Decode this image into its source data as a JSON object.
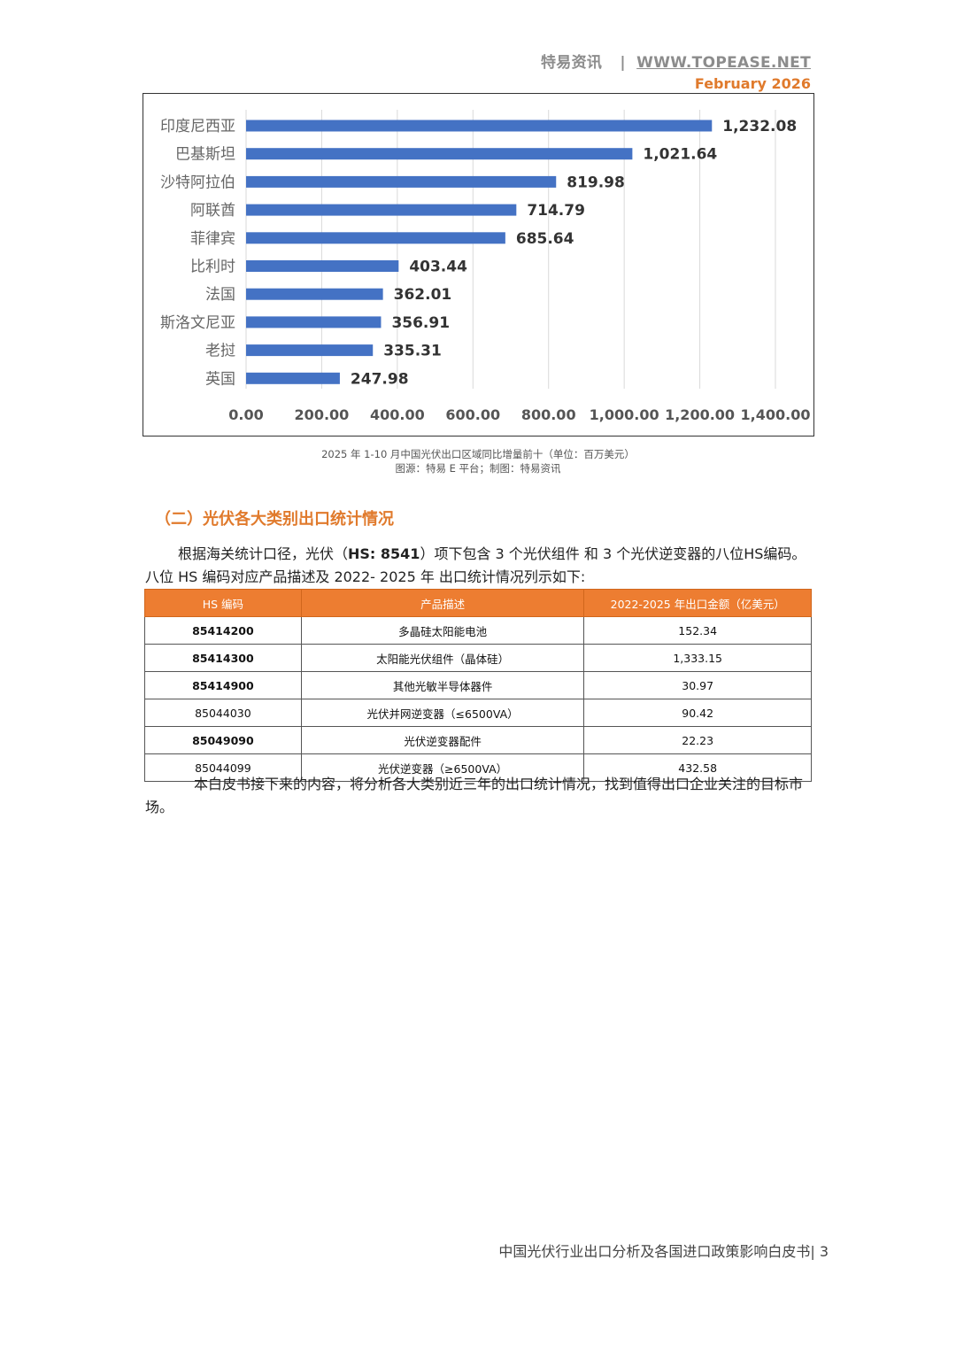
{
  "header": {
    "brand": "特易资讯",
    "separator": "|",
    "site": "WWW.TOPEASE.NET",
    "date": "February 2026"
  },
  "chart_data": {
    "type": "bar",
    "orientation": "horizontal",
    "categories": [
      "印度尼西亚",
      "巴基斯坦",
      "沙特阿拉伯",
      "阿联酋",
      "菲律宾",
      "比利时",
      "法国",
      "斯洛文尼亚",
      "老挝",
      "英国"
    ],
    "values": [
      1232.08,
      1021.64,
      819.98,
      714.79,
      685.64,
      403.44,
      362.01,
      356.91,
      335.31,
      247.98
    ],
    "value_labels": [
      "1,232.08",
      "1,021.64",
      "819.98",
      "714.79",
      "685.64",
      "403.44",
      "362.01",
      "356.91",
      "335.31",
      "247.98"
    ],
    "xlim": [
      0,
      1400
    ],
    "xticks": [
      "0.00",
      "200.00",
      "400.00",
      "600.00",
      "800.00",
      "1,000.00",
      "1,200.00",
      "1,400.00"
    ],
    "bar_color": "#4472c4",
    "grid": true
  },
  "caption": {
    "line1": "2025 年 1-10 月中国光伏出口区域同比增量前十（单位：百万美元）",
    "line2": "图源：特易 E 平台；制图：特易资讯"
  },
  "section": {
    "title": "（二）光伏各大类别出口统计情况"
  },
  "intro": {
    "part1": "根据海关统计口径，光伏（",
    "hs_bold": "HS: 8541",
    "part2": "）项下包含 3 个光伏组件 和 3 个光伏逆变器的八位HS编码。",
    "line2": "八位 HS 编码对应产品描述及 2022- 2025 年 出口统计情况列示如下:"
  },
  "table": {
    "headers": [
      "HS 编码",
      "产品描述",
      "2022-2025 年出口金额（亿美元）"
    ],
    "rows": [
      {
        "code": "85414200",
        "desc": "多晶硅太阳能电池",
        "amount": "152.34"
      },
      {
        "code": "85414300",
        "desc": "太阳能光伏组件（晶体硅）",
        "amount": "1,333.15"
      },
      {
        "code": "85414900",
        "desc": "其他光敏半导体器件",
        "amount": "30.97"
      },
      {
        "code": "85044030",
        "desc": "光伏并网逆变器（≤6500VA）",
        "amount": "90.42"
      },
      {
        "code": "85049090",
        "desc": "光伏逆变器配件",
        "amount": "22.23"
      },
      {
        "code": "85044099",
        "desc": "光伏逆变器（≥6500VA）",
        "amount": "432.58"
      }
    ]
  },
  "closing": "本白皮书接下来的内容，将分析各大类别近三年的出口统计情况，找到值得出口企业关注的目标市场。",
  "footer": {
    "title": "中国光伏行业出口分析及各国进口政策影响白皮书",
    "separator": "|",
    "page": "3"
  }
}
